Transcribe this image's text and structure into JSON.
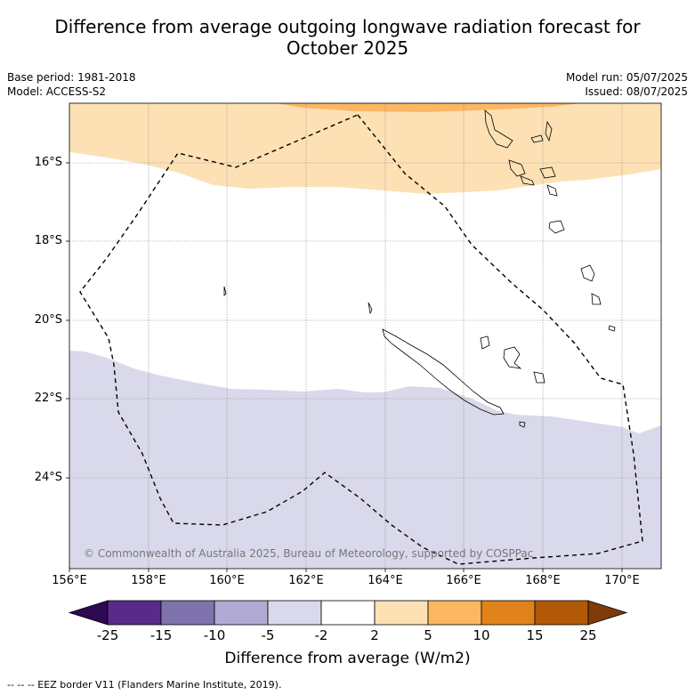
{
  "title_line1": "Difference from average outgoing longwave radiation forecast for",
  "title_line2": "October 2025",
  "base_period": "Base period: 1981-2018",
  "model": "Model: ACCESS-S2",
  "model_run": "Model run: 05/07/2025",
  "issued": "Issued: 08/07/2025",
  "lat_labels": [
    "16°S",
    "18°S",
    "20°S",
    "22°S",
    "24°S"
  ],
  "lon_labels": [
    "156°E",
    "158°E",
    "160°E",
    "162°E",
    "164°E",
    "166°E",
    "168°E",
    "170°E"
  ],
  "copyright": "© Commonwealth of Australia 2025, Bureau of Meteorology, supported by COSPPac",
  "colorbar": {
    "ticks": [
      "-25",
      "-15",
      "-10",
      "-5",
      "-2",
      "2",
      "5",
      "10",
      "15",
      "25"
    ],
    "colors": [
      "#2d0a52",
      "#5a2a8a",
      "#7e73ad",
      "#b1aad4",
      "#d9d9eb",
      "#ffffff",
      "#fde0b4",
      "#fbb761",
      "#e1831d",
      "#b35806",
      "#7f3b08"
    ],
    "label": "Difference from average (W/m2)"
  },
  "footnote": "--  --  -- EEZ border V11 (Flanders Marine Institute, 2019).",
  "fields": {
    "orange_light": "#fde0b4",
    "orange_mid": "#fbb761",
    "purple_light": "#d9d9eb"
  }
}
